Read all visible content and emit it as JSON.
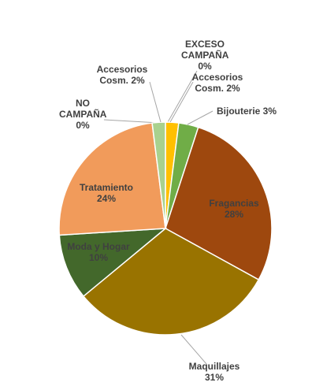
{
  "chart_data": {
    "type": "pie",
    "categories": [
      "EXCESO CAMPAÑA",
      "Accesorios Cosm.",
      "Bijouterie",
      "Fragancias",
      "Maquillajes",
      "Moda y Hogar",
      "Tratamiento",
      "NO CAMPAÑA",
      "Accesorios Cosm."
    ],
    "values": [
      0,
      2,
      3,
      28,
      31,
      10,
      24,
      0,
      2
    ],
    "value_labels": [
      "0%",
      "2%",
      "3%",
      "28%",
      "31%",
      "10%",
      "24%",
      "0%",
      "2%"
    ],
    "colors": [
      "#5b9bd5",
      "#ffc000",
      "#70ad47",
      "#9e480e",
      "#997300",
      "#43682b",
      "#f19b5b",
      "#a5a5a5",
      "#a9d18e"
    ]
  }
}
